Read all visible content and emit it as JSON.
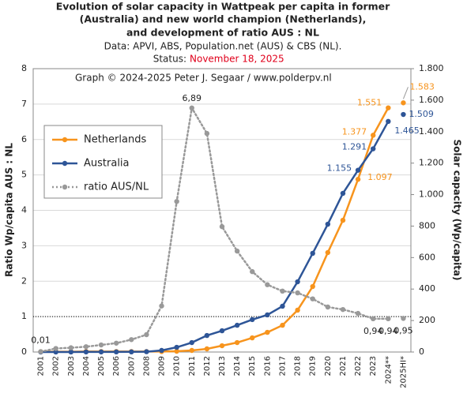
{
  "chart_data": {
    "type": "line",
    "title": [
      "Evolution of solar capacity in Wattpeak per capita in former",
      "(Australia) and new world champion (Netherlands),",
      "and development of ratio AUS : NL"
    ],
    "subtitle": "Data: APVI, ABS, Population.net (AUS) & CBS (NL).",
    "status_label": "Status:",
    "status_date": "November 18, 2025",
    "annotation": "Graph © 2024-2025 Peter J. Segaar / www.polderpv.nl",
    "y_label": "Ratio Wp/capita AUS : NL",
    "y2_label": "Solar capacity (Wp/capita)",
    "categories": [
      "2001",
      "2002",
      "2003",
      "2004",
      "2005",
      "2006",
      "2007",
      "2008",
      "2009",
      "2010",
      "2011",
      "2012",
      "2013",
      "2014",
      "2015",
      "2016",
      "2017",
      "2018",
      "2019",
      "2020",
      "2021",
      "2022",
      "2023",
      "2024**",
      "2025HI*"
    ],
    "series": [
      {
        "name": "Netherlands",
        "color": "#f7941d",
        "axis": "y2",
        "style": "solid",
        "values": [
          2,
          2,
          2,
          3,
          3,
          3,
          3,
          3,
          3,
          5,
          10,
          20,
          40,
          60,
          90,
          125,
          170,
          266,
          416,
          632,
          837,
          1097,
          1377,
          1551,
          1583
        ],
        "value_labels": [
          null,
          null,
          null,
          null,
          null,
          null,
          null,
          null,
          null,
          null,
          null,
          null,
          null,
          null,
          null,
          null,
          null,
          null,
          null,
          null,
          null,
          "1.097",
          "1.377",
          "1.551",
          "1.583"
        ]
      },
      {
        "name": "Australia",
        "color": "#2e5597",
        "axis": "y2",
        "style": "solid",
        "values": [
          0,
          0.2,
          0.3,
          0.5,
          0.6,
          0.8,
          1,
          2,
          10,
          30,
          60,
          105,
          135,
          170,
          206,
          236,
          291,
          446,
          627,
          812,
          1008,
          1155,
          1291,
          1465,
          1509
        ],
        "value_labels": [
          null,
          null,
          null,
          null,
          null,
          null,
          null,
          null,
          null,
          null,
          null,
          null,
          null,
          null,
          null,
          null,
          null,
          null,
          null,
          null,
          null,
          "1.155",
          "1.291",
          "1.465",
          "1.509"
        ]
      },
      {
        "name": "ratio AUS/NL",
        "color": "#999999",
        "axis": "y",
        "style": "dotted",
        "values": [
          0.01,
          0.1,
          0.12,
          0.15,
          0.2,
          0.25,
          0.35,
          0.49,
          1.3,
          4.25,
          6.89,
          6.17,
          3.54,
          2.85,
          2.27,
          1.9,
          1.72,
          1.67,
          1.5,
          1.27,
          1.2,
          1.09,
          0.94,
          0.94,
          0.95
        ],
        "value_labels": [
          "0,01",
          null,
          null,
          null,
          null,
          null,
          null,
          null,
          null,
          null,
          "6,89",
          null,
          null,
          null,
          null,
          null,
          null,
          null,
          null,
          null,
          null,
          null,
          "0,94",
          "0,94",
          "0,95"
        ]
      }
    ],
    "ylim": [
      0,
      8
    ],
    "yticks": [
      0,
      1,
      2,
      3,
      4,
      5,
      6,
      7,
      8
    ],
    "y2lim": [
      0,
      1800
    ],
    "y2ticks": [
      0,
      200,
      400,
      600,
      800,
      {
        "value": 1000,
        "label": "1.000"
      },
      {
        "value": 1200,
        "label": "1.200"
      },
      {
        "value": 1400,
        "label": "1.400"
      },
      {
        "value": 1600,
        "label": "1.600"
      },
      {
        "value": 1800,
        "label": "1.800"
      }
    ],
    "reference_line": 1,
    "separate_last_point": true,
    "grid": true,
    "legend": "left"
  }
}
